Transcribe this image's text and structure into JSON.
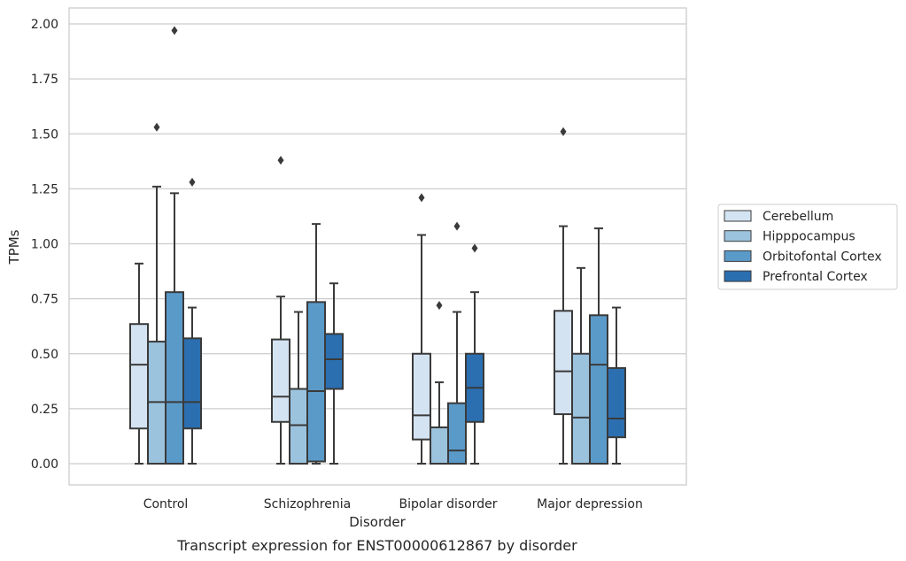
{
  "caption": "Transcript expression for ENST00000612867 by disorder",
  "chart_data": {
    "type": "box",
    "xlabel": "Disorder",
    "ylabel": "TPMs",
    "ylim": [
      -0.1,
      2.07
    ],
    "yticks": [
      "0.00",
      "0.25",
      "0.50",
      "0.75",
      "1.00",
      "1.25",
      "1.50",
      "1.75",
      "2.00"
    ],
    "ytick_values": [
      0,
      0.25,
      0.5,
      0.75,
      1.0,
      1.25,
      1.5,
      1.75,
      2.0
    ],
    "grid": "horizontal",
    "legend_position": "right",
    "categories": [
      "Control",
      "Schizophrenia",
      "Bipolar disorder",
      "Major depression"
    ],
    "series": [
      {
        "name": "Cerebellum",
        "color": "#d4e3f2",
        "boxes": [
          {
            "whislo": 0.0,
            "q1": 0.16,
            "med": 0.45,
            "q3": 0.635,
            "whishi": 0.91,
            "fliers": []
          },
          {
            "whislo": 0.0,
            "q1": 0.19,
            "med": 0.305,
            "q3": 0.565,
            "whishi": 0.76,
            "fliers": [
              1.38
            ]
          },
          {
            "whislo": 0.0,
            "q1": 0.11,
            "med": 0.22,
            "q3": 0.5,
            "whishi": 1.04,
            "fliers": [
              1.21
            ]
          },
          {
            "whislo": 0.0,
            "q1": 0.225,
            "med": 0.42,
            "q3": 0.695,
            "whishi": 1.08,
            "fliers": [
              1.51
            ]
          }
        ]
      },
      {
        "name": "Hipppocampus",
        "color": "#9bc3de",
        "boxes": [
          {
            "whislo": 0.0,
            "q1": 0.0,
            "med": 0.28,
            "q3": 0.555,
            "whishi": 1.26,
            "fliers": [
              1.53
            ]
          },
          {
            "whislo": 0.0,
            "q1": 0.0,
            "med": 0.175,
            "q3": 0.34,
            "whishi": 0.69,
            "fliers": []
          },
          {
            "whislo": 0.0,
            "q1": 0.0,
            "med": 0.0,
            "q3": 0.165,
            "whishi": 0.37,
            "fliers": [
              0.72
            ]
          },
          {
            "whislo": 0.0,
            "q1": 0.0,
            "med": 0.21,
            "q3": 0.5,
            "whishi": 0.89,
            "fliers": []
          }
        ]
      },
      {
        "name": "Orbitofontal Cortex",
        "color": "#5a9ac9",
        "boxes": [
          {
            "whislo": 0.0,
            "q1": 0.0,
            "med": 0.28,
            "q3": 0.78,
            "whishi": 1.23,
            "fliers": [
              1.97
            ]
          },
          {
            "whislo": 0.0,
            "q1": 0.01,
            "med": 0.33,
            "q3": 0.735,
            "whishi": 1.09,
            "fliers": []
          },
          {
            "whislo": 0.0,
            "q1": 0.0,
            "med": 0.06,
            "q3": 0.275,
            "whishi": 0.69,
            "fliers": [
              1.08
            ]
          },
          {
            "whislo": 0.0,
            "q1": 0.0,
            "med": 0.45,
            "q3": 0.675,
            "whishi": 1.07,
            "fliers": []
          }
        ]
      },
      {
        "name": "Prefrontal Cortex",
        "color": "#2b6fb0",
        "boxes": [
          {
            "whislo": 0.0,
            "q1": 0.16,
            "med": 0.28,
            "q3": 0.57,
            "whishi": 0.71,
            "fliers": [
              1.28
            ]
          },
          {
            "whislo": 0.0,
            "q1": 0.34,
            "med": 0.475,
            "q3": 0.59,
            "whishi": 0.82,
            "fliers": []
          },
          {
            "whislo": 0.0,
            "q1": 0.19,
            "med": 0.345,
            "q3": 0.5,
            "whishi": 0.78,
            "fliers": [
              0.98
            ]
          },
          {
            "whislo": 0.0,
            "q1": 0.12,
            "med": 0.205,
            "q3": 0.435,
            "whishi": 0.71,
            "fliers": []
          }
        ]
      }
    ]
  }
}
